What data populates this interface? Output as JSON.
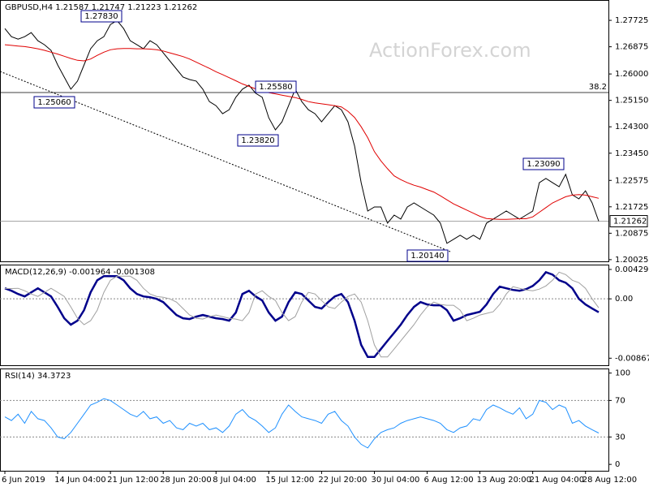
{
  "chart_data": [
    {
      "type": "line",
      "title": "GBPUSD,H4  1.21587 1.21747 1.21223 1.21262",
      "watermark": "ActionForex.com",
      "categories": [
        "6 Jun 2019",
        null,
        null,
        null,
        null,
        null,
        null,
        null,
        "14 Jun 04:00",
        null,
        null,
        null,
        null,
        null,
        null,
        null,
        "21 Jun 12:00",
        null,
        null,
        null,
        null,
        null,
        null,
        null,
        "28 Jun 20:00",
        null,
        null,
        null,
        null,
        null,
        null,
        null,
        "8 Jul 04:00",
        null,
        null,
        null,
        null,
        null,
        null,
        null,
        "15 Jul 12:00",
        null,
        null,
        null,
        null,
        null,
        null,
        null,
        "22 Jul 20:00",
        null,
        null,
        null,
        null,
        null,
        null,
        null,
        "30 Jul 04:00",
        null,
        null,
        null,
        null,
        null,
        null,
        null,
        "6 Aug 12:00",
        null,
        null,
        null,
        null,
        null,
        null,
        null,
        "13 Aug 20:00",
        null,
        null,
        null,
        null,
        null,
        null,
        null,
        "21 Aug 04:00",
        null,
        null,
        null,
        null,
        null,
        null,
        null,
        "28 Aug 12:00",
        null,
        null
      ],
      "series": [
        {
          "name": "GBPUSD",
          "color": "#000000",
          "values": [
            1.2746,
            1.272,
            1.2712,
            1.272,
            1.2733,
            1.2707,
            1.2694,
            1.2676,
            1.2629,
            1.259,
            1.2551,
            1.2577,
            1.2629,
            1.2681,
            1.2707,
            1.272,
            1.2759,
            1.2772,
            1.2746,
            1.2707,
            1.2694,
            1.2681,
            1.2707,
            1.2694,
            1.2668,
            1.2642,
            1.2616,
            1.259,
            1.2582,
            1.2577,
            1.2551,
            1.2511,
            1.2498,
            1.2472,
            1.2485,
            1.2525,
            1.2551,
            1.2564,
            1.2538,
            1.2525,
            1.2459,
            1.242,
            1.2446,
            1.2498,
            1.2551,
            1.2511,
            1.2485,
            1.2472,
            1.2446,
            1.2472,
            1.2498,
            1.2485,
            1.2446,
            1.2368,
            1.225,
            1.2159,
            1.2172,
            1.2172,
            1.212,
            1.2146,
            1.2133,
            1.2172,
            1.2185,
            1.2172,
            1.2159,
            1.2146,
            1.212,
            1.2055,
            1.2068,
            1.2081,
            1.2068,
            1.2081,
            1.2068,
            1.212,
            1.2133,
            1.2146,
            1.2159,
            1.2146,
            1.2133,
            1.2146,
            1.2159,
            1.225,
            1.2264,
            1.225,
            1.2237,
            1.2277,
            1.2211,
            1.2198,
            1.2224,
            1.2185,
            1.21262
          ]
        },
        {
          "name": "MA",
          "color": "#e00000",
          "values": [
            1.2694,
            1.2692,
            1.269,
            1.2688,
            1.2685,
            1.2681,
            1.2676,
            1.267,
            1.2664,
            1.2657,
            1.265,
            1.2644,
            1.2642,
            1.2648,
            1.266,
            1.267,
            1.2678,
            1.2681,
            1.2682,
            1.2682,
            1.2681,
            1.2681,
            1.268,
            1.2678,
            1.2674,
            1.2668,
            1.2662,
            1.2656,
            1.2648,
            1.2638,
            1.2628,
            1.2618,
            1.2607,
            1.2598,
            1.2588,
            1.2578,
            1.2568,
            1.256,
            1.2552,
            1.2546,
            1.254,
            1.2536,
            1.2532,
            1.2528,
            1.2524,
            1.2518,
            1.2511,
            1.2507,
            1.2504,
            1.2501,
            1.2498,
            1.2494,
            1.248,
            1.246,
            1.243,
            1.2395,
            1.235,
            1.232,
            1.2295,
            1.2272,
            1.226,
            1.225,
            1.2242,
            1.2236,
            1.2228,
            1.222,
            1.2208,
            1.2195,
            1.2182,
            1.2172,
            1.2162,
            1.2152,
            1.2142,
            1.2135,
            1.2133,
            1.2132,
            1.2132,
            1.2133,
            1.2134,
            1.2134,
            1.214,
            1.2155,
            1.217,
            1.2185,
            1.2195,
            1.2205,
            1.221,
            1.2212,
            1.221,
            1.2205,
            1.22
          ]
        }
      ],
      "current_price": 1.21262,
      "annotations": [
        {
          "value": 1.2783,
          "label": "1.27830"
        },
        {
          "value": 1.2506,
          "label": "1.25060"
        },
        {
          "value": 1.2558,
          "label": "1.25580"
        },
        {
          "value": 1.2382,
          "label": "1.23820"
        },
        {
          "value": 1.2309,
          "label": "1.23090"
        },
        {
          "value": 1.2014,
          "label": "1.20140"
        }
      ],
      "fib_label": "38.2",
      "ylim": [
        1.1997,
        1.2838
      ],
      "yticks": [
        1.27725,
        1.26875,
        {
          "value": 1.26,
          "label": "1.26000"
        },
        {
          "value": 1.2515,
          "label": "1.25150"
        },
        {
          "value": 1.243,
          "label": "1.24300"
        },
        {
          "value": 1.2345,
          "label": "1.23450"
        },
        1.22575,
        1.21725,
        1.20875,
        1.20025
      ]
    },
    {
      "type": "line",
      "title": "MACD(12,26,9) -0.001964 -0.001308",
      "series": [
        {
          "name": "MACD",
          "color": "#00008b",
          "values": [
            0.001534,
            0.00118,
            0.000708,
            0.000354,
            0.000944,
            0.001534,
            0.000944,
            0.000354,
            -0.00118,
            -0.002832,
            -0.003776,
            -0.003186,
            -0.001652,
            0.000944,
            0.002714,
            0.003304,
            0.003304,
            0.003304,
            0.002714,
            0.001534,
            0.000708,
            0.000354,
            0.000236,
            0,
            -0.000472,
            -0.001416,
            -0.00236,
            -0.002832,
            -0.00295,
            -0.002596,
            -0.00236,
            -0.002596,
            -0.002832,
            -0.00295,
            -0.003186,
            -0.002006,
            0.000708,
            0.00118,
            0.000354,
            -0.000236,
            -0.002006,
            -0.003186,
            -0.002596,
            -0.000472,
            0.000944,
            0.000708,
            -0.000236,
            -0.00118,
            -0.001416,
            -0.000472,
            0.000354,
            0.000708,
            -0.000472,
            -0.003186,
            -0.006726,
            -0.008496,
            -0.008496,
            -0.007316,
            -0.006136,
            -0.004956,
            -0.003776,
            -0.00236,
            -0.00118,
            -0.000472,
            -0.000826,
            -0.000944,
            -0.000944,
            -0.001652,
            -0.003186,
            -0.002832,
            -0.00236,
            -0.002124,
            -0.001888,
            -0.000826,
            0.000708,
            0.00177,
            0.001534,
            0.001298,
            0.00118,
            0.001416,
            0.001888,
            0.002714,
            0.003894,
            0.00354,
            0.002714,
            0.00236,
            0.001534,
            0,
            -0.000826,
            -0.001416,
            -0.001964
          ]
        },
        {
          "name": "Signal",
          "color": "#a0a0a0",
          "values": [
            0.0015,
            0.0015,
            0.001534,
            0.00118,
            0.000708,
            0.000354,
            0.000944,
            0.001534,
            0.000944,
            0.000354,
            -0.00118,
            -0.002832,
            -0.003776,
            -0.003186,
            -0.001652,
            0.000944,
            0.002714,
            0.003304,
            0.003304,
            0.003304,
            0.002714,
            0.001534,
            0.000708,
            0.000354,
            0.000236,
            0,
            -0.000472,
            -0.001416,
            -0.00236,
            -0.002832,
            -0.00295,
            -0.002596,
            -0.00236,
            -0.002596,
            -0.002832,
            -0.00295,
            -0.003186,
            -0.002006,
            0.000708,
            0.00118,
            0.000354,
            -0.000236,
            -0.002006,
            -0.003186,
            -0.002596,
            -0.000472,
            0.000944,
            0.000708,
            -0.000236,
            -0.00118,
            -0.001416,
            -0.000472,
            0.000354,
            0.000708,
            -0.000472,
            -0.003186,
            -0.006726,
            -0.008496,
            -0.008496,
            -0.007316,
            -0.006136,
            -0.004956,
            -0.003776,
            -0.00236,
            -0.00118,
            -0.000472,
            -0.000826,
            -0.000944,
            -0.000944,
            -0.001652,
            -0.003186,
            -0.002832,
            -0.00236,
            -0.002124,
            -0.001888,
            -0.000826,
            0.000708,
            0.00177,
            0.001534,
            0.001298,
            0.00118,
            0.001416,
            0.001888,
            0.002714,
            0.003894,
            0.00354,
            0.002714,
            0.00236,
            0.001534,
            0,
            -0.001308
          ]
        }
      ],
      "ylim": [
        -0.0097,
        0.005
      ],
      "yticks": [
        0.004293,
        {
          "value": 0,
          "label": "0.00"
        },
        -0.00867
      ]
    },
    {
      "type": "line",
      "title": "RSI(14) 34.3723",
      "series": [
        {
          "name": "RSI",
          "color": "#1e90ff",
          "values": [
            52,
            48,
            55,
            45,
            58,
            50,
            48,
            40,
            30,
            28,
            35,
            45,
            55,
            65,
            68,
            72,
            70,
            65,
            60,
            55,
            52,
            58,
            50,
            52,
            45,
            48,
            40,
            38,
            45,
            42,
            45,
            38,
            40,
            35,
            42,
            55,
            60,
            52,
            48,
            42,
            35,
            40,
            55,
            65,
            58,
            52,
            50,
            48,
            45,
            55,
            58,
            48,
            42,
            30,
            22,
            18,
            28,
            35,
            38,
            40,
            45,
            48,
            50,
            52,
            50,
            48,
            45,
            38,
            35,
            40,
            42,
            50,
            48,
            60,
            65,
            62,
            58,
            55,
            62,
            50,
            55,
            70,
            68,
            60,
            65,
            62,
            45,
            48,
            42,
            38,
            34.3723
          ]
        }
      ],
      "levels": [
        70,
        30
      ],
      "ylim": [
        -7,
        105
      ],
      "yticks": [
        100,
        70,
        30,
        0
      ]
    }
  ]
}
